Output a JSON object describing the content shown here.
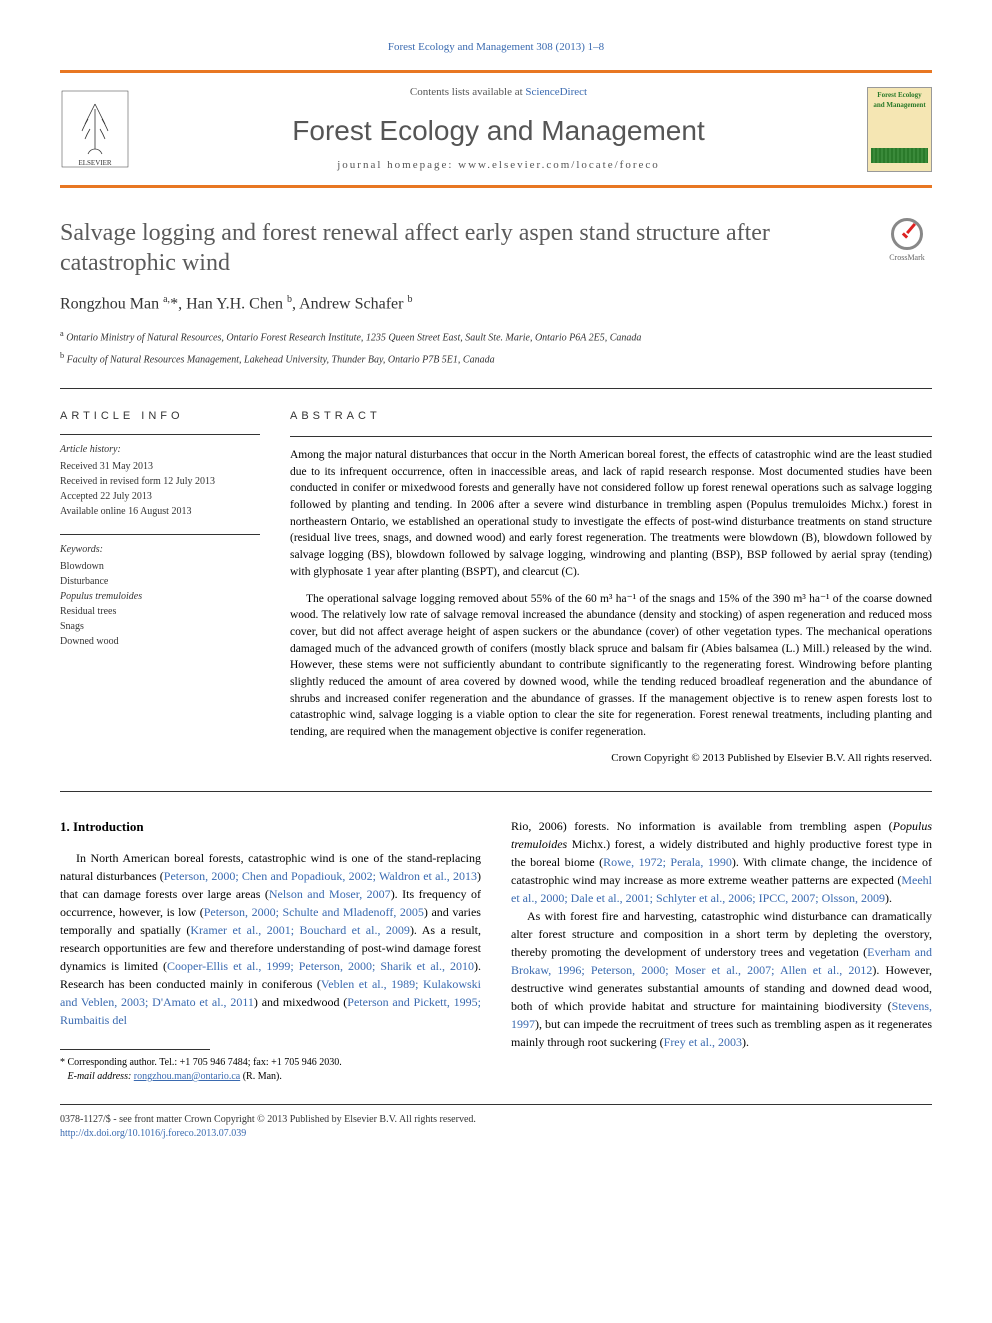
{
  "citation": "Forest Ecology and Management 308 (2013) 1–8",
  "header": {
    "contents_prefix": "Contents lists available at ",
    "contents_link": "ScienceDirect",
    "journal_name": "Forest Ecology and Management",
    "homepage": "journal homepage: www.elsevier.com/locate/foreco",
    "cover_title": "Forest Ecology and Management"
  },
  "crossmark_label": "CrossMark",
  "title": "Salvage logging and forest renewal affect early aspen stand structure after catastrophic wind",
  "authors_html": "Rongzhou Man <sup>a,</sup>*, Han Y.H. Chen <sup>b</sup>, Andrew Schafer <sup>b</sup>",
  "affiliations": [
    "Ontario Ministry of Natural Resources, Ontario Forest Research Institute, 1235 Queen Street East, Sault Ste. Marie, Ontario P6A 2E5, Canada",
    "Faculty of Natural Resources Management, Lakehead University, Thunder Bay, Ontario P7B 5E1, Canada"
  ],
  "affiliation_marks": [
    "a",
    "b"
  ],
  "article_info": {
    "heading": "ARTICLE INFO",
    "history_label": "Article history:",
    "history": [
      "Received 31 May 2013",
      "Received in revised form 12 July 2013",
      "Accepted 22 July 2013",
      "Available online 16 August 2013"
    ],
    "keywords_label": "Keywords:",
    "keywords": [
      "Blowdown",
      "Disturbance",
      "Populus tremuloides",
      "Residual trees",
      "Snags",
      "Downed wood"
    ]
  },
  "abstract": {
    "heading": "ABSTRACT",
    "paras": [
      "Among the major natural disturbances that occur in the North American boreal forest, the effects of catastrophic wind are the least studied due to its infrequent occurrence, often in inaccessible areas, and lack of rapid research response. Most documented studies have been conducted in conifer or mixedwood forests and generally have not considered follow up forest renewal operations such as salvage logging followed by planting and tending. In 2006 after a severe wind disturbance in trembling aspen (Populus tremuloides Michx.) forest in northeastern Ontario, we established an operational study to investigate the effects of post-wind disturbance treatments on stand structure (residual live trees, snags, and downed wood) and early forest regeneration. The treatments were blowdown (B), blowdown followed by salvage logging (BS), blowdown followed by salvage logging, windrowing and planting (BSP), BSP followed by aerial spray (tending) with glyphosate 1 year after planting (BSPT), and clearcut (C).",
      "The operational salvage logging removed about 55% of the 60 m³ ha⁻¹ of the snags and 15% of the 390 m³ ha⁻¹ of the coarse downed wood. The relatively low rate of salvage removal increased the abundance (density and stocking) of aspen regeneration and reduced moss cover, but did not affect average height of aspen suckers or the abundance (cover) of other vegetation types. The mechanical operations damaged much of the advanced growth of conifers (mostly black spruce and balsam fir (Abies balsamea (L.) Mill.) released by the wind. However, these stems were not sufficiently abundant to contribute significantly to the regenerating forest. Windrowing before planting slightly reduced the amount of area covered by downed wood, while the tending reduced broadleaf regeneration and the abundance of shrubs and increased conifer regeneration and the abundance of grasses. If the management objective is to renew aspen forests lost to catastrophic wind, salvage logging is a viable option to clear the site for regeneration. Forest renewal treatments, including planting and tending, are required when the management objective is conifer regeneration."
    ],
    "copyright": "Crown Copyright © 2013 Published by Elsevier B.V. All rights reserved."
  },
  "intro": {
    "heading": "1. Introduction",
    "col1": "In North American boreal forests, catastrophic wind is one of the stand-replacing natural disturbances (<span class='cite-link'>Peterson, 2000; Chen and Popadiouk, 2002; Waldron et al., 2013</span>) that can damage forests over large areas (<span class='cite-link'>Nelson and Moser, 2007</span>). Its frequency of occurrence, however, is low (<span class='cite-link'>Peterson, 2000; Schulte and Mladenoff, 2005</span>) and varies temporally and spatially (<span class='cite-link'>Kramer et al., 2001; Bouchard et al., 2009</span>). As a result, research opportunities are few and therefore understanding of post-wind damage forest dynamics is limited (<span class='cite-link'>Cooper-Ellis et al., 1999; Peterson, 2000; Sharik et al., 2010</span>). Research has been conducted mainly in coniferous (<span class='cite-link'>Veblen et al., 1989; Kulakowski and Veblen, 2003; D'Amato et al., 2011</span>) and mixedwood (<span class='cite-link'>Peterson and Pickett, 1995; Rumbaitis del",
    "col2a": "Rio, 2006</span>) forests. No information is available from trembling aspen (<em>Populus tremuloides</em> Michx.) forest, a widely distributed and highly productive forest type in the boreal biome (<span class='cite-link'>Rowe, 1972; Perala, 1990</span>). With climate change, the incidence of catastrophic wind may increase as more extreme weather patterns are expected (<span class='cite-link'>Meehl et al., 2000; Dale et al., 2001; Schlyter et al., 2006; IPCC, 2007; Olsson, 2009</span>).",
    "col2b": "As with forest fire and harvesting, catastrophic wind disturbance can dramatically alter forest structure and composition in a short term by depleting the overstory, thereby promoting the development of understory trees and vegetation (<span class='cite-link'>Everham and Brokaw, 1996; Peterson, 2000; Moser et al., 2007; Allen et al., 2012</span>). However, destructive wind generates substantial amounts of standing and downed dead wood, both of which provide habitat and structure for maintaining biodiversity (<span class='cite-link'>Stevens, 1997</span>), but can impede the recruitment of trees such as trembling aspen as it regenerates mainly through root suckering (<span class='cite-link'>Frey et al., 2003</span>)."
  },
  "corresp": {
    "star": "*",
    "line1": "Corresponding author. Tel.: +1 705 946 7484; fax: +1 705 946 2030.",
    "email_label": "E-mail address:",
    "email": "rongzhou.man@ontario.ca",
    "email_paren": "(R. Man)."
  },
  "footer": {
    "issn": "0378-1127/$ - see front matter Crown Copyright © 2013 Published by Elsevier B.V. All rights reserved.",
    "doi": "http://dx.doi.org/10.1016/j.foreco.2013.07.039"
  },
  "colors": {
    "orange_rule": "#e87722",
    "link_blue": "#3a6ab0",
    "title_gray": "#5a5a5a"
  }
}
